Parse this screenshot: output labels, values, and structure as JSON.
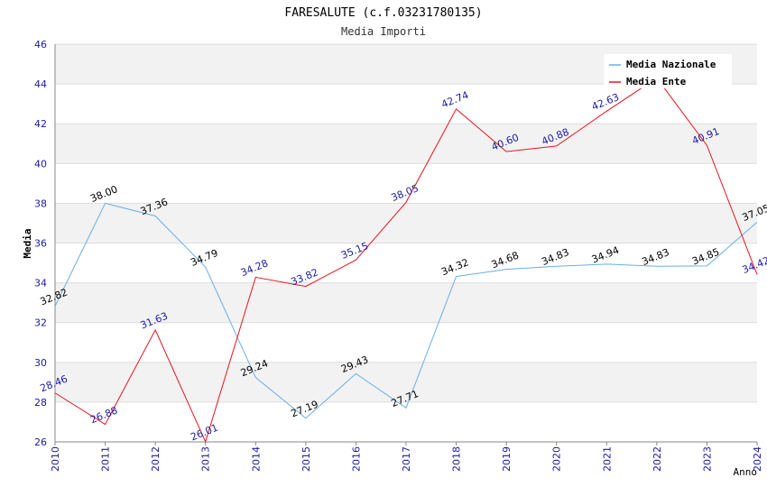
{
  "chart_data": {
    "type": "line",
    "title": "FARESALUTE (c.f.03231780135)",
    "subtitle": "Media Importi",
    "xlabel": "Anno",
    "ylabel": "Media",
    "ylim": [
      26,
      46
    ],
    "ytick_step": 2,
    "categories": [
      "2010",
      "2011",
      "2012",
      "2013",
      "2014",
      "2015",
      "2016",
      "2017",
      "2018",
      "2019",
      "2020",
      "2021",
      "2022",
      "2023",
      "2024"
    ],
    "series": [
      {
        "name": "Media Nazionale",
        "color": "#6aaee8",
        "values": [
          32.82,
          38.0,
          37.36,
          34.79,
          29.24,
          27.19,
          29.43,
          27.71,
          34.32,
          34.68,
          34.83,
          34.94,
          34.83,
          34.85,
          37.05
        ],
        "labels": [
          "32.82",
          "38.00",
          "37.36",
          "34.79",
          "29.24",
          "27.19",
          "29.43",
          "27.71",
          "34.32",
          "34.68",
          "34.83",
          "34.94",
          "34.83",
          "34.85",
          "37.05"
        ]
      },
      {
        "name": "Media Ente",
        "color": "#e8141e",
        "values": [
          28.46,
          26.88,
          31.63,
          26.01,
          34.28,
          33.82,
          35.15,
          38.05,
          42.74,
          40.6,
          40.88,
          42.63,
          44.3,
          40.91,
          34.42
        ],
        "labels": [
          "28.46",
          "26.88",
          "31.63",
          "26.01",
          "34.28",
          "33.82",
          "35.15",
          "38.05",
          "42.74",
          "40.60",
          "40.88",
          "42.63",
          "",
          "40.91",
          "34.42"
        ]
      }
    ],
    "legend": "top-right",
    "grid": true
  }
}
